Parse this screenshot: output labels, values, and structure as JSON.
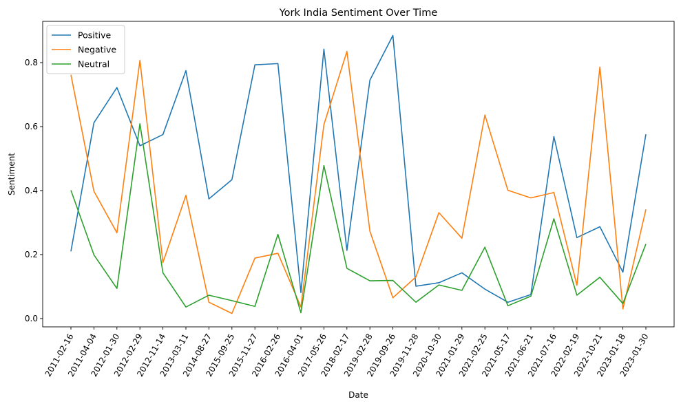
{
  "chart_data": {
    "type": "line",
    "title": "York India Sentiment Over Time",
    "xlabel": "Date",
    "ylabel": "Sentiment",
    "x": [
      "2011-02-16",
      "2011-04-04",
      "2012-01-30",
      "2012-02-29",
      "2012-11-14",
      "2013-03-11",
      "2014-08-27",
      "2015-09-25",
      "2015-11-27",
      "2016-02-26",
      "2016-04-01",
      "2017-05-26",
      "2018-02-17",
      "2019-02-28",
      "2019-09-26",
      "2019-11-28",
      "2020-10-30",
      "2021-01-29",
      "2021-02-25",
      "2021-05-17",
      "2021-06-21",
      "2021-07-16",
      "2022-02-19",
      "2022-10-21",
      "2023-01-18",
      "2023-01-30"
    ],
    "yticks": [
      "0.0",
      "0.2",
      "0.4",
      "0.6",
      "0.8"
    ],
    "ylim": [
      -0.026,
      0.929
    ],
    "grid": false,
    "legend_position": "top-left",
    "series": [
      {
        "name": "Positive",
        "color": "#1f77b4",
        "values": [
          0.21,
          0.612,
          0.722,
          0.54,
          0.575,
          0.775,
          0.374,
          0.434,
          0.793,
          0.797,
          0.081,
          0.842,
          0.213,
          0.745,
          0.885,
          0.101,
          0.112,
          0.143,
          0.092,
          0.051,
          0.075,
          0.569,
          0.253,
          0.287,
          0.145,
          0.576
        ]
      },
      {
        "name": "Negative",
        "color": "#ff7f0e",
        "values": [
          0.762,
          0.398,
          0.268,
          0.807,
          0.175,
          0.385,
          0.051,
          0.016,
          0.189,
          0.204,
          0.036,
          0.606,
          0.835,
          0.273,
          0.065,
          0.13,
          0.331,
          0.251,
          0.636,
          0.401,
          0.377,
          0.394,
          0.104,
          0.786,
          0.03,
          0.341
        ]
      },
      {
        "name": "Neutral",
        "color": "#2ca02c",
        "values": [
          0.401,
          0.199,
          0.094,
          0.609,
          0.143,
          0.036,
          0.073,
          0.056,
          0.038,
          0.263,
          0.018,
          0.478,
          0.157,
          0.118,
          0.119,
          0.051,
          0.105,
          0.088,
          0.223,
          0.04,
          0.07,
          0.312,
          0.073,
          0.129,
          0.047,
          0.233
        ]
      }
    ]
  }
}
